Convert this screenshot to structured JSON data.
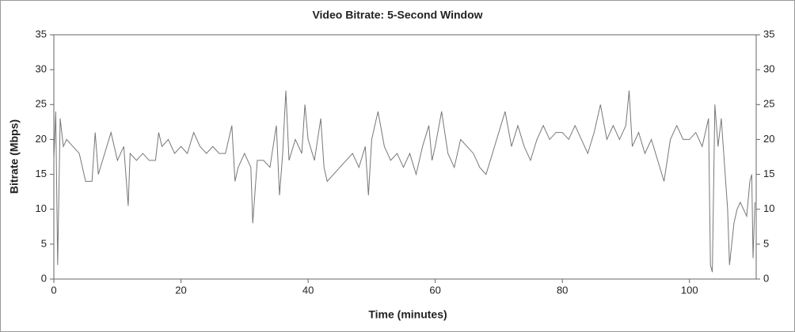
{
  "chart_data": {
    "type": "line",
    "title": "Video Bitrate: 5-Second Window",
    "x_label": "Time (minutes)",
    "y_label": "Bitrate (Mbps)",
    "x": [
      0,
      0.3,
      0.6,
      1,
      1.5,
      2,
      3,
      4,
      5,
      6,
      6.5,
      7,
      8,
      9,
      10,
      11,
      11.7,
      12,
      13,
      14,
      15,
      16,
      16.5,
      17,
      18,
      19,
      20,
      21,
      22,
      23,
      24,
      25,
      26,
      27,
      28,
      28.5,
      29,
      30,
      31,
      31.3,
      32,
      33,
      34,
      35,
      35.5,
      36,
      36.5,
      37,
      38,
      39,
      39.5,
      40,
      41,
      42,
      42.5,
      43,
      44,
      45,
      46,
      47,
      48,
      49,
      49.5,
      50,
      51,
      52,
      53,
      54,
      55,
      56,
      57,
      58,
      59,
      59.5,
      60,
      61,
      62,
      63,
      64,
      65,
      66,
      67,
      68,
      69,
      70,
      71,
      72,
      73,
      74,
      75,
      76,
      77,
      78,
      79,
      80,
      81,
      82,
      83,
      84,
      85,
      86,
      87,
      88,
      89,
      90,
      90.5,
      91,
      92,
      93,
      94,
      95,
      96,
      97,
      98,
      99,
      100,
      101,
      102,
      103,
      103.3,
      103.6,
      104,
      104.5,
      105,
      106,
      106.3,
      107,
      107.5,
      108,
      109,
      109.5,
      109.8,
      110,
      110.3
    ],
    "series": [
      {
        "name": "Bitrate",
        "color": "#777777",
        "values": [
          17,
          24,
          2,
          23,
          19,
          20,
          19,
          18,
          14,
          14,
          21,
          15,
          18,
          21,
          17,
          19,
          10.5,
          18,
          17,
          18,
          17,
          17,
          21,
          19,
          20,
          18,
          19,
          18,
          21,
          19,
          18,
          19,
          18,
          18,
          22,
          14,
          16,
          18,
          16,
          8,
          17,
          17,
          16,
          22,
          12,
          18,
          27,
          17,
          20,
          18,
          25,
          20,
          17,
          23,
          16,
          14,
          15,
          16,
          17,
          18,
          16,
          19,
          12,
          20,
          24,
          19,
          17,
          18,
          16,
          18,
          15,
          19,
          22,
          17,
          19,
          24,
          18,
          16,
          20,
          19,
          18,
          16,
          15,
          18,
          21,
          24,
          19,
          22,
          19,
          17,
          20,
          22,
          20,
          21,
          21,
          20,
          22,
          20,
          18,
          21,
          25,
          20,
          22,
          20,
          22,
          27,
          19,
          21,
          18,
          20,
          17,
          14,
          20,
          22,
          20,
          20,
          21,
          19,
          23,
          2,
          1,
          25,
          19,
          23,
          10,
          2,
          8,
          10,
          11,
          9,
          14,
          15,
          3,
          11
        ]
      }
    ],
    "xlim": [
      0,
      110.5
    ],
    "xticks": [
      0,
      20,
      40,
      60,
      80,
      100
    ],
    "ylim": [
      0,
      35
    ],
    "yticks": [
      0,
      5,
      10,
      15,
      20,
      25,
      30,
      35
    ],
    "y2lim": [
      0,
      35
    ],
    "y2ticks": [
      0,
      5,
      10,
      15,
      20,
      25,
      30,
      35
    ]
  }
}
